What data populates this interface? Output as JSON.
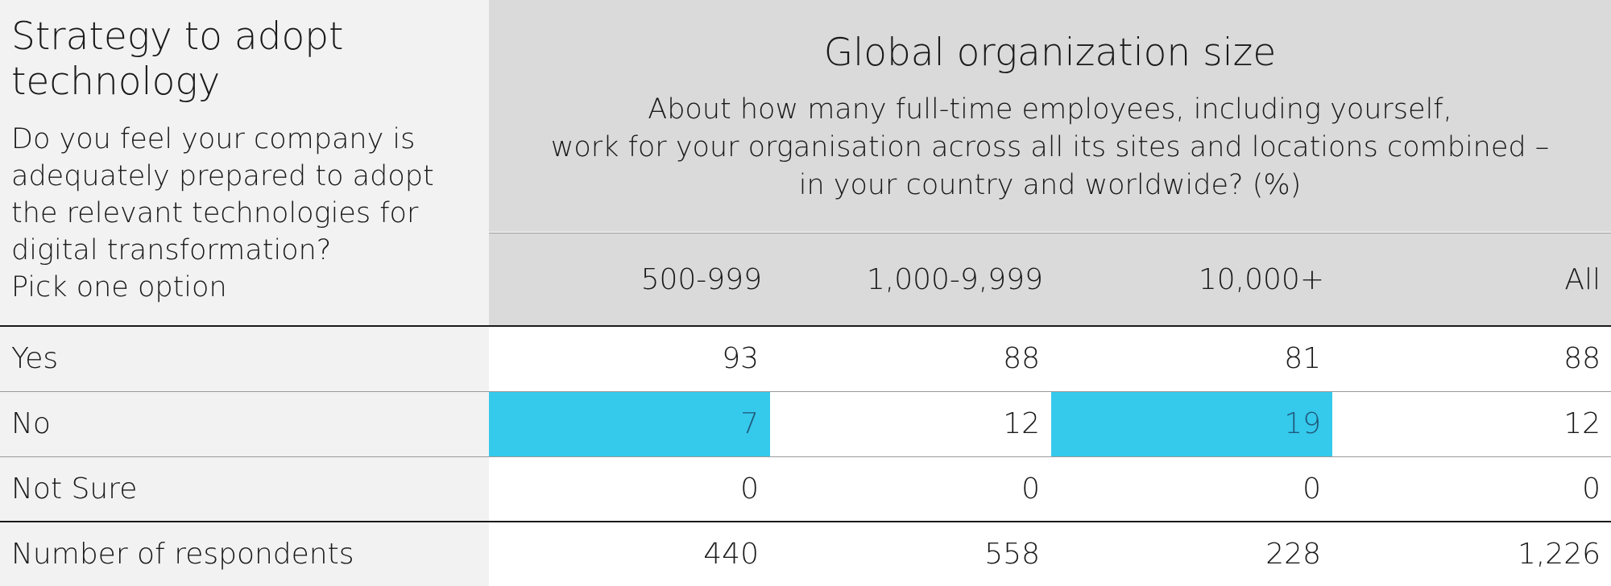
{
  "left_header": {
    "title_lines": [
      "Strategy to adopt",
      "technology"
    ],
    "question_lines": [
      "Do you feel your company is",
      "adequately prepared to adopt",
      "the relevant technologies for",
      "digital transformation?",
      "Pick one option"
    ]
  },
  "right_header": {
    "title": "Global organization size",
    "subtitle_lines": [
      "About how many full-time employees, including yourself,",
      "work for your organisation across all its sites and locations combined –",
      "in your country and worldwide? (%)"
    ]
  },
  "columns": [
    "500-999",
    "1,000-9,999",
    "10,000+",
    "All"
  ],
  "rows": [
    {
      "label": "Yes",
      "values": [
        "93",
        "88",
        "81",
        "88"
      ],
      "highlight": [
        false,
        false,
        false,
        false
      ]
    },
    {
      "label": "No",
      "values": [
        "7",
        "12",
        "19",
        "12"
      ],
      "highlight": [
        true,
        false,
        true,
        false
      ]
    },
    {
      "label": "Not Sure",
      "values": [
        "0",
        "0",
        "0",
        "0"
      ],
      "highlight": [
        false,
        false,
        false,
        false
      ]
    },
    {
      "label": "Number of respondents",
      "values": [
        "440",
        "558",
        "228",
        "1,226"
      ],
      "highlight": [
        false,
        false,
        false,
        false
      ]
    }
  ],
  "colors": {
    "highlight": "#35c9ec",
    "highlight_text": "#1f5a7a",
    "header_bg": "#dadada",
    "label_bg": "#f2f2f2"
  }
}
